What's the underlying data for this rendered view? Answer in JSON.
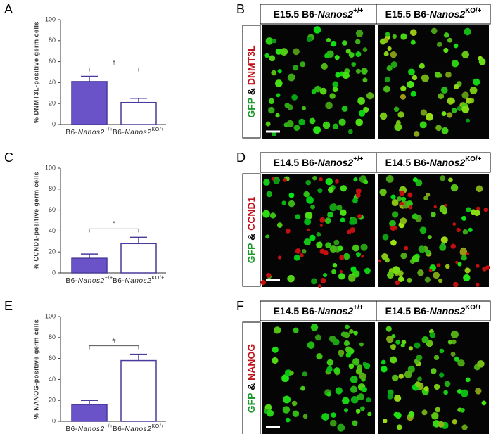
{
  "chart_data": [
    {
      "type": "bar",
      "panel": "A",
      "y_label": "% DNMT3L-positive germ cells",
      "categories": [
        [
          "B6-",
          "Nanos2",
          "+/+"
        ],
        [
          "B6-",
          "Nanos2",
          "KO/+"
        ]
      ],
      "values": [
        41,
        21
      ],
      "errors": [
        5,
        4
      ],
      "colors": [
        "#6a52c8",
        "#ffffff"
      ],
      "edge_color": "#4b3a9c",
      "ylim": [
        0,
        100
      ],
      "yticks": [
        0,
        20,
        40,
        60,
        80,
        100
      ],
      "significance": "†"
    },
    {
      "type": "bar",
      "panel": "C",
      "y_label": "% CCND1-positive germ cells",
      "categories": [
        [
          "B6-",
          "Nanos2",
          "+/+"
        ],
        [
          "B6-",
          "Nanos2",
          "KO/+"
        ]
      ],
      "values": [
        14,
        28
      ],
      "errors": [
        4,
        6
      ],
      "colors": [
        "#6a52c8",
        "#ffffff"
      ],
      "edge_color": "#4b3a9c",
      "ylim": [
        0,
        100
      ],
      "yticks": [
        0,
        20,
        40,
        60,
        80,
        100
      ],
      "significance": "*"
    },
    {
      "type": "bar",
      "panel": "E",
      "y_label": "% NANOG-positive germ cells",
      "categories": [
        [
          "B6-",
          "Nanos2",
          "+/+"
        ],
        [
          "B6-",
          "Nanos2",
          "KO/+"
        ]
      ],
      "values": [
        16,
        58
      ],
      "errors": [
        4,
        6
      ],
      "colors": [
        "#6a52c8",
        "#ffffff"
      ],
      "edge_color": "#4b3a9c",
      "ylim": [
        0,
        100
      ],
      "yticks": [
        0,
        20,
        40,
        60,
        80,
        100
      ],
      "significance": "#"
    }
  ],
  "image_panels": [
    {
      "panel": "B",
      "stain": [
        "GFP",
        "&",
        "DNMT3L"
      ],
      "stain_colors": [
        "#1a9a2a",
        "#000000",
        "#c0141c"
      ],
      "headers": [
        [
          "E15.5 B6-",
          "Nanos2",
          "+/+"
        ],
        [
          "E15.5 B6-",
          "Nanos2",
          "KO/+"
        ]
      ]
    },
    {
      "panel": "D",
      "stain": [
        "GFP",
        "&",
        "CCND1"
      ],
      "stain_colors": [
        "#1a9a2a",
        "#000000",
        "#c0141c"
      ],
      "headers": [
        [
          "E14.5 B6-",
          "Nanos2",
          "+/+"
        ],
        [
          "E14.5 B6-",
          "Nanos2",
          "KO/+"
        ]
      ]
    },
    {
      "panel": "F",
      "stain": [
        "GFP",
        "&",
        "NANOG"
      ],
      "stain_colors": [
        "#1a9a2a",
        "#000000",
        "#c0141c"
      ],
      "headers": [
        [
          "E14.5 B6-",
          "Nanos2",
          "+/+"
        ],
        [
          "E14.5 B6-",
          "Nanos2",
          "KO/+"
        ]
      ]
    }
  ]
}
